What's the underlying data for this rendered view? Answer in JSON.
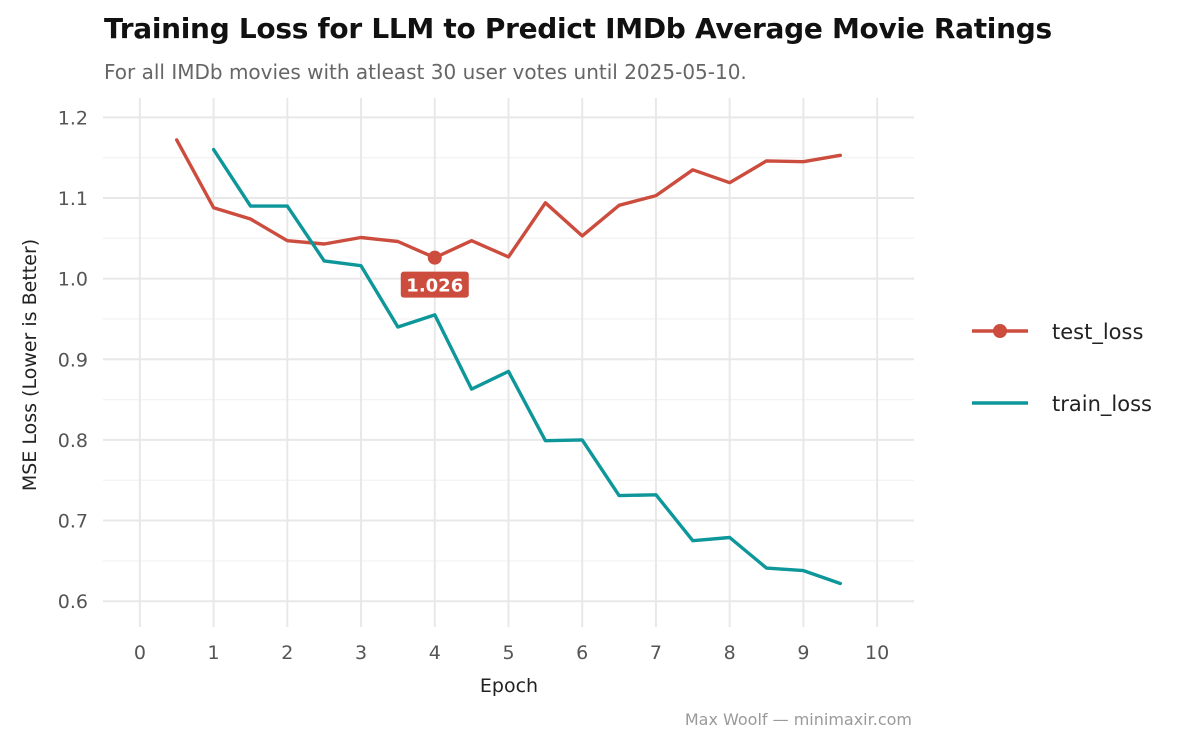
{
  "title": "Training Loss for LLM to Predict IMDb Average Movie Ratings",
  "subtitle": "For all IMDb movies with atleast 30 user votes until 2025-05-10.",
  "caption": "Max Woolf — minimaxir.com",
  "chart_data": {
    "type": "line",
    "xlabel": "Epoch",
    "ylabel": "MSE Loss (Lower is Better)",
    "xlim": [
      -0.5,
      10.5
    ],
    "ylim": [
      0.568,
      1.224
    ],
    "x_ticks": [
      0,
      1,
      2,
      3,
      4,
      5,
      6,
      7,
      8,
      9,
      10
    ],
    "y_ticks": [
      0.6,
      0.7,
      0.8,
      0.9,
      1.0,
      1.1,
      1.2
    ],
    "y_tick_labels": [
      "0.6",
      "0.7",
      "0.8",
      "0.9",
      "1.0",
      "1.1",
      "1.2"
    ],
    "grid": true,
    "legend_position": "right",
    "series": [
      {
        "name": "test_loss",
        "color": "#cc4c3e",
        "x": [
          0.5,
          1,
          1.5,
          2,
          2.5,
          3,
          3.5,
          4,
          4.5,
          5,
          5.5,
          6,
          6.5,
          7,
          7.5,
          8,
          8.5,
          9,
          9.5
        ],
        "y": [
          1.172,
          1.088,
          1.074,
          1.047,
          1.043,
          1.051,
          1.046,
          1.026,
          1.047,
          1.027,
          1.094,
          1.053,
          1.091,
          1.103,
          1.135,
          1.119,
          1.146,
          1.145,
          1.153
        ]
      },
      {
        "name": "train_loss",
        "color": "#0e979a",
        "x": [
          1,
          1.5,
          2,
          2.5,
          3,
          3.5,
          4,
          4.5,
          5,
          5.5,
          6,
          6.5,
          7,
          7.5,
          8,
          8.5,
          9,
          9.5
        ],
        "y": [
          1.16,
          1.09,
          1.09,
          1.022,
          1.016,
          0.94,
          0.955,
          0.863,
          0.885,
          0.799,
          0.8,
          0.731,
          0.732,
          0.675,
          0.679,
          0.641,
          0.638,
          0.622
        ]
      }
    ],
    "annotations": [
      {
        "series": "test_loss",
        "x": 4,
        "y": 1.026,
        "label": "1.026",
        "color": "#cc4c3e"
      }
    ]
  }
}
